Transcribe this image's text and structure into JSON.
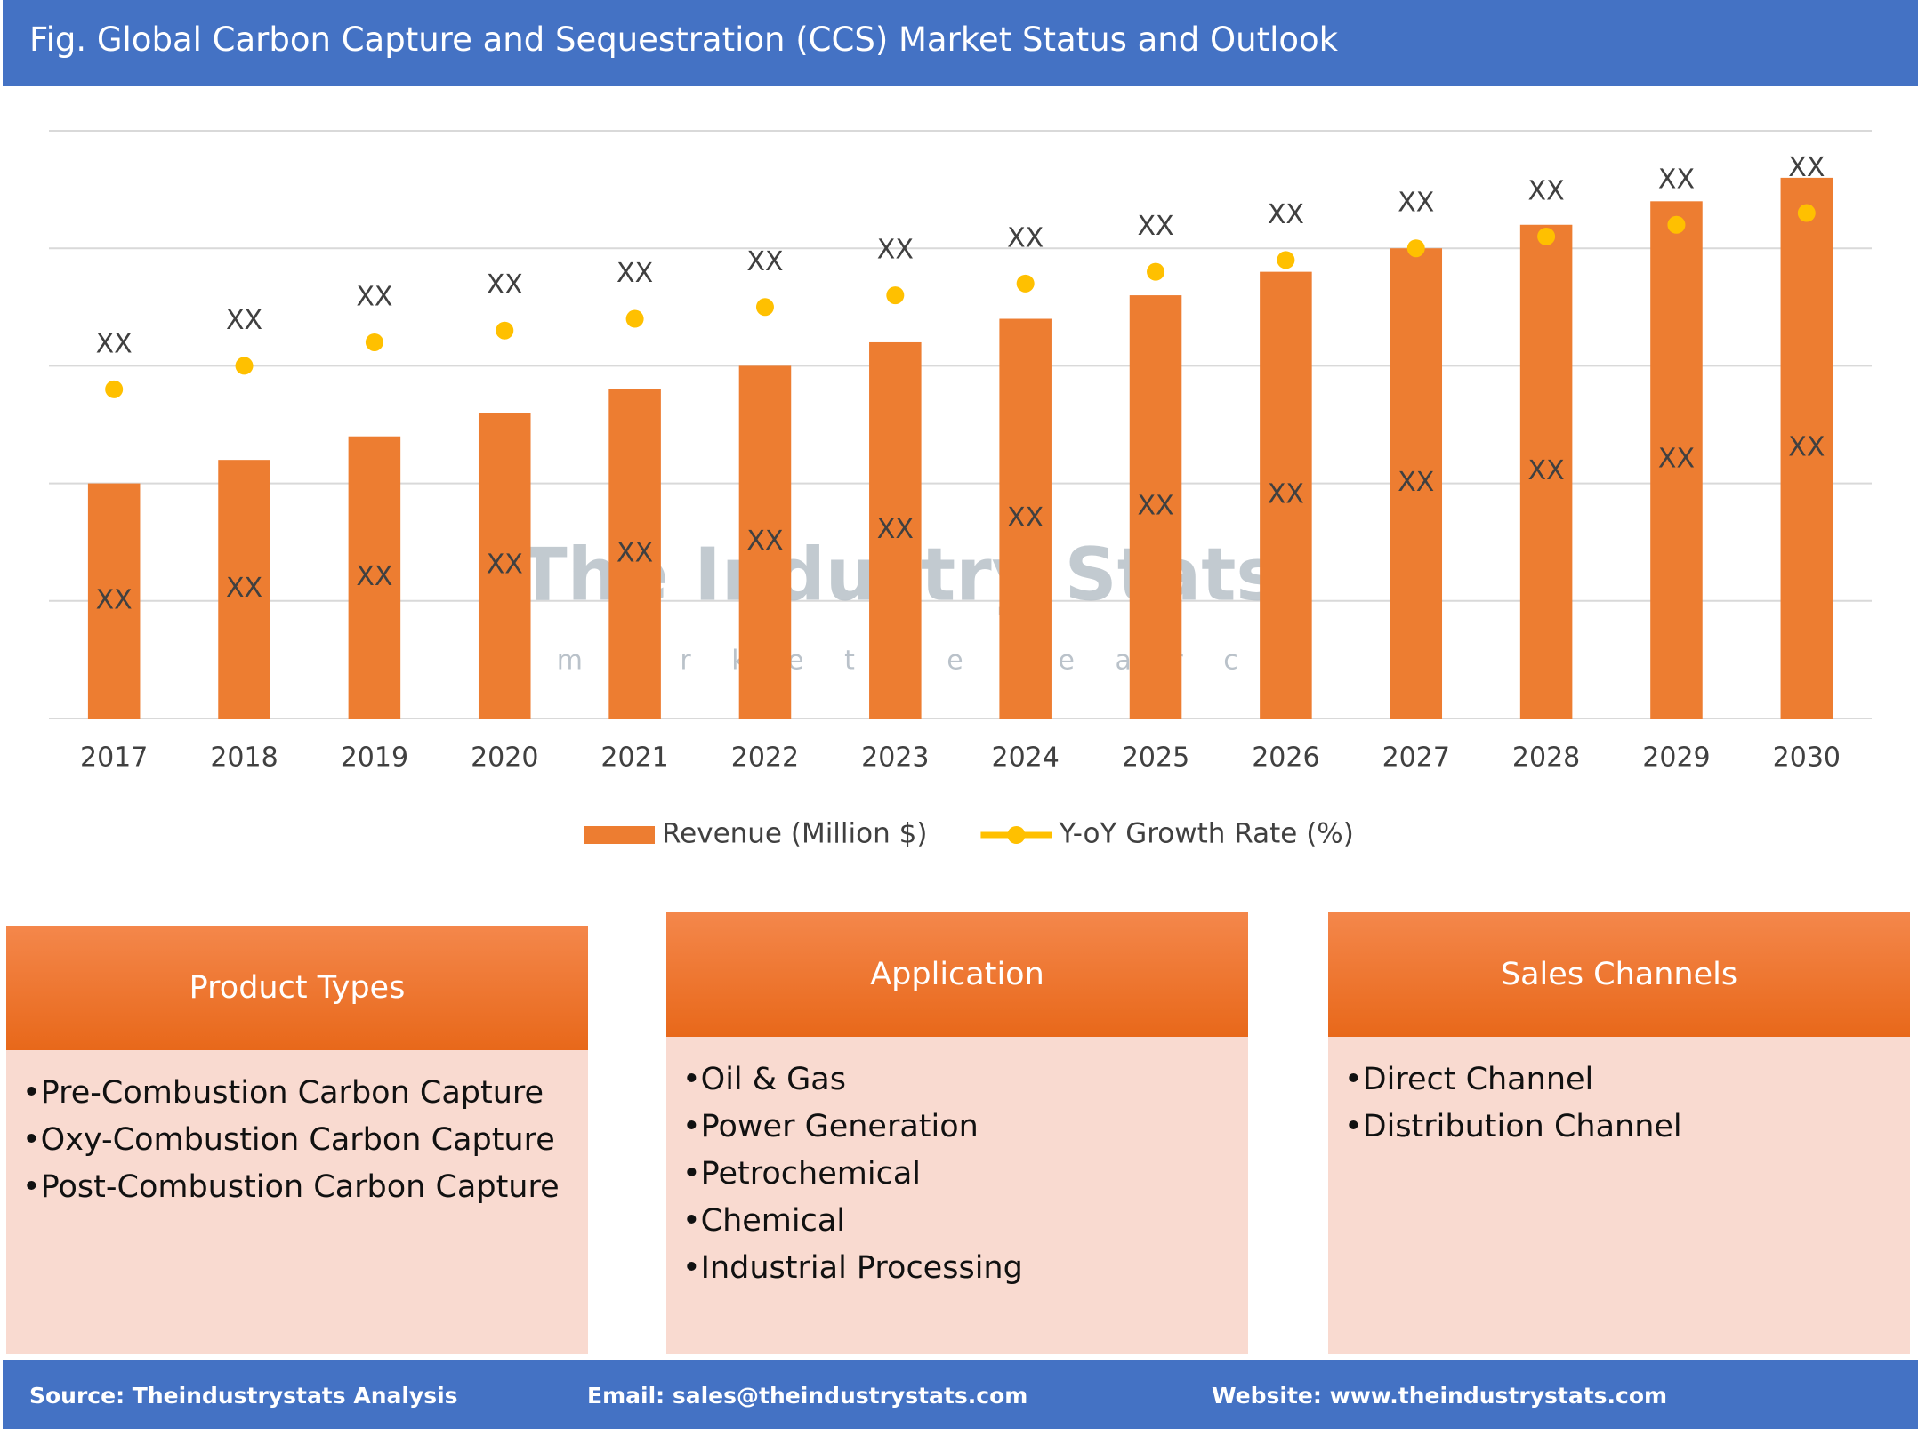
{
  "header": {
    "title": "Fig. Global Carbon Capture and Sequestration (CCS) Market Status and Outlook"
  },
  "chart_data": {
    "type": "bar",
    "categories": [
      "2017",
      "2018",
      "2019",
      "2020",
      "2021",
      "2022",
      "2023",
      "2024",
      "2025",
      "2026",
      "2027",
      "2028",
      "2029",
      "2030"
    ],
    "series": [
      {
        "name": "Revenue (Million $)",
        "type": "bar",
        "color": "#ed7d31",
        "values": [
          2.0,
          2.2,
          2.4,
          2.6,
          2.8,
          3.0,
          3.2,
          3.4,
          3.6,
          3.8,
          4.0,
          4.2,
          4.4,
          4.6
        ],
        "value_labels": [
          "XX",
          "XX",
          "XX",
          "XX",
          "XX",
          "XX",
          "XX",
          "XX",
          "XX",
          "XX",
          "XX",
          "XX",
          "XX",
          "XX"
        ]
      },
      {
        "name": "Y-oY Growth Rate (%)",
        "type": "line",
        "color": "#ffc000",
        "values": [
          2.8,
          3.0,
          3.2,
          3.3,
          3.4,
          3.5,
          3.6,
          3.7,
          3.8,
          3.9,
          4.0,
          4.1,
          4.2,
          4.3
        ],
        "value_labels": [
          "XX",
          "XX",
          "XX",
          "XX",
          "XX",
          "XX",
          "XX",
          "XX",
          "XX",
          "XX",
          "XX",
          "XX",
          "XX",
          "XX"
        ]
      }
    ],
    "ylim": [
      0,
      5
    ],
    "gridlines": [
      0,
      1,
      2,
      3,
      4,
      5
    ],
    "grid": true,
    "legend": "bottom",
    "watermark": {
      "name": "The Industry Stats",
      "tagline": "m a r k e t   r e s e a r c h"
    }
  },
  "panels": [
    {
      "title": "Product Types",
      "items": [
        "•Pre-Combustion Carbon Capture",
        "•Oxy-Combustion Carbon Capture",
        "•Post-Combustion Carbon Capture"
      ]
    },
    {
      "title": "Application",
      "items": [
        "•Oil & Gas",
        "•Power Generation",
        "•Petrochemical",
        "•Chemical",
        "•Industrial Processing"
      ]
    },
    {
      "title": "Sales Channels",
      "items": [
        "•Direct Channel",
        "•Distribution Channel"
      ]
    }
  ],
  "footer": {
    "source": "Source: Theindustrystats Analysis",
    "email": "Email: sales@theindustrystats.com",
    "website": "Website: www.theindustrystats.com"
  }
}
